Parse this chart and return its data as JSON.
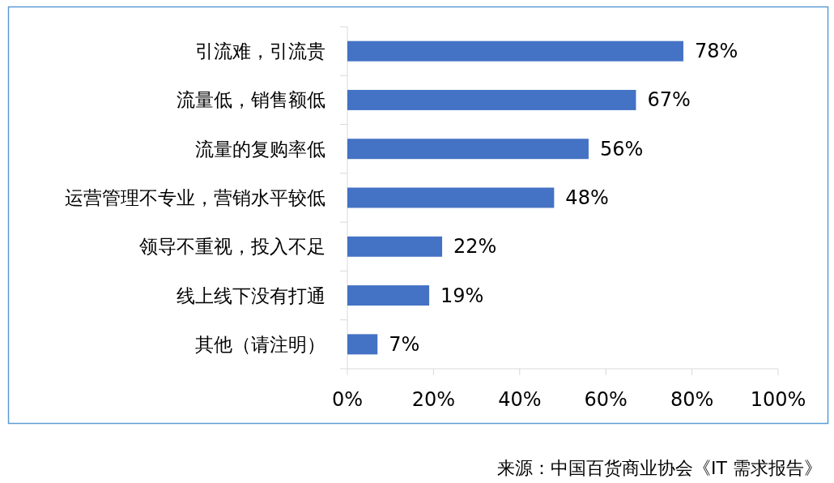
{
  "chart_data": {
    "type": "bar",
    "orientation": "horizontal",
    "categories": [
      "引流难，引流贵",
      "流量低，销售额低",
      "流量的复购率低",
      "运营管理不专业，营销水平较低",
      "领导不重视，投入不足",
      "线上线下没有打通",
      "其他（请注明）"
    ],
    "values": [
      78,
      67,
      56,
      48,
      22,
      19,
      7
    ],
    "value_labels": [
      "78%",
      "67%",
      "56%",
      "48%",
      "22%",
      "19%",
      "7%"
    ],
    "color": "#4472c4",
    "xlim": [
      0,
      100
    ],
    "xticks": [
      {
        "value": 0,
        "label": "0%"
      },
      {
        "value": 20,
        "label": "20%"
      },
      {
        "value": 40,
        "label": "40%"
      },
      {
        "value": 60,
        "label": "60%"
      },
      {
        "value": 80,
        "label": "80%"
      },
      {
        "value": 100,
        "label": "100%"
      }
    ],
    "annotations": [
      "来源：中国百货商业协会《IT 需求报告》"
    ]
  }
}
